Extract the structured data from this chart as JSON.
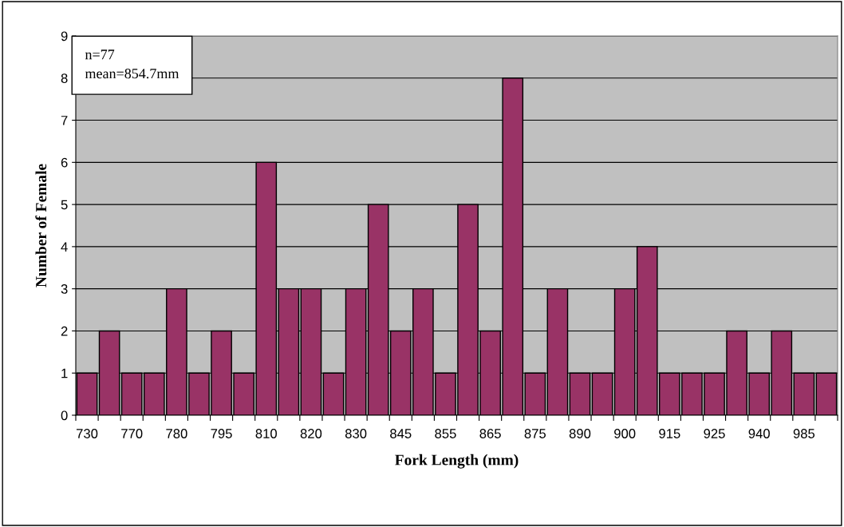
{
  "chart_data": {
    "type": "bar",
    "xlabel": "Fork Length (mm)",
    "ylabel": "Number of Female",
    "categories": [
      "730",
      null,
      "770",
      null,
      "780",
      null,
      "795",
      null,
      "810",
      null,
      "820",
      null,
      "830",
      null,
      "845",
      null,
      "855",
      null,
      "865",
      null,
      "875",
      null,
      "890",
      null,
      "900",
      null,
      "915",
      null,
      "925",
      null,
      "940",
      null,
      "985",
      null
    ],
    "values": [
      1,
      2,
      1,
      1,
      3,
      1,
      2,
      1,
      6,
      3,
      3,
      1,
      3,
      5,
      2,
      3,
      1,
      5,
      2,
      8,
      1,
      3,
      1,
      1,
      3,
      4,
      1,
      1,
      1,
      2,
      1,
      2,
      1,
      1
    ],
    "color": "#993366",
    "ylim": [
      0,
      9
    ],
    "yticks": [
      0,
      1,
      2,
      3,
      4,
      5,
      6,
      7,
      8,
      9
    ],
    "grid": "y",
    "legend": false,
    "annotations": [
      "n=77\nmean=854.7mm"
    ]
  }
}
